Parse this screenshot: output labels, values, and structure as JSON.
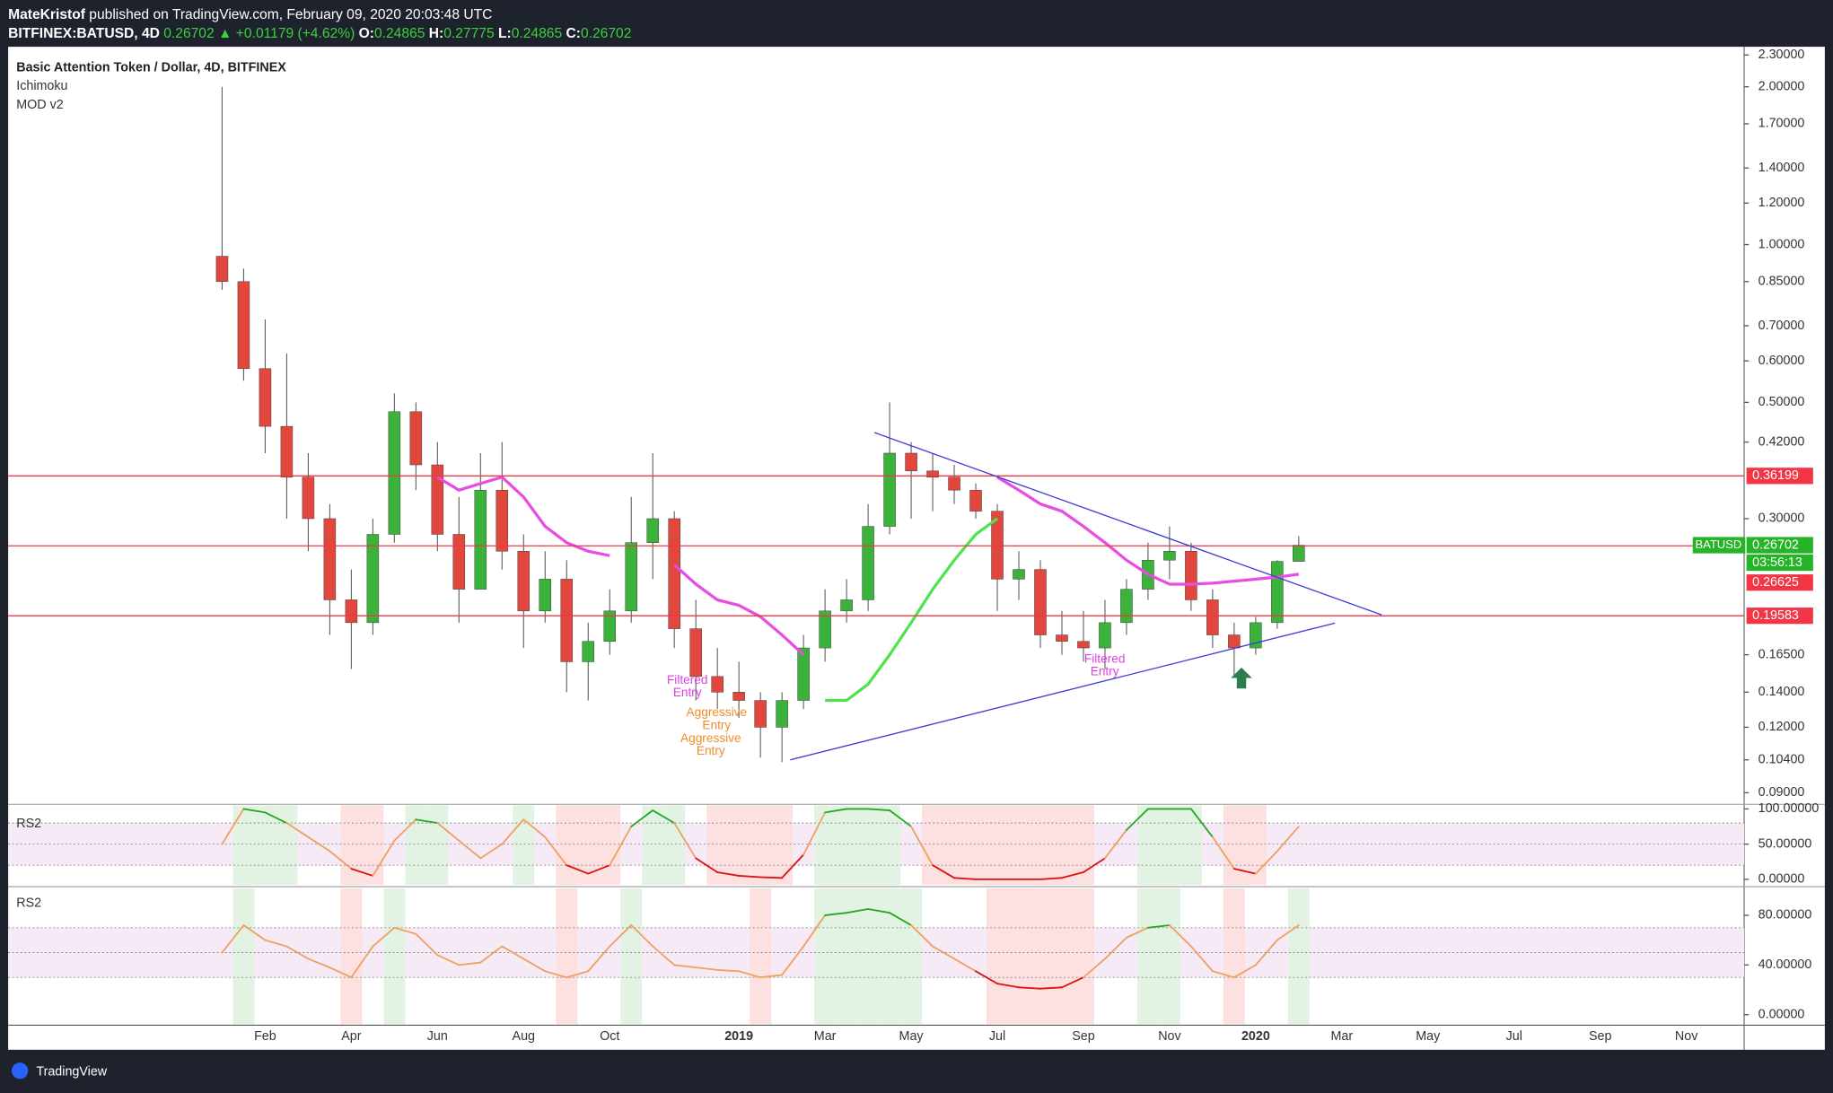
{
  "header": {
    "author": "MateKristof",
    "published": "published on TradingView.com, February 09, 2020 20:03:48 UTC",
    "symbol": "BITFINEX:BATUSD, 4D",
    "last": "0.26702",
    "change": "▲ +0.01179 (+4.62%)",
    "ohlc": [
      {
        "label": "O:",
        "value": "0.24865"
      },
      {
        "label": "H:",
        "value": "0.27775"
      },
      {
        "label": "L:",
        "value": "0.24865"
      },
      {
        "label": "C:",
        "value": "0.26702"
      }
    ]
  },
  "footer": {
    "brand": "TradingView"
  },
  "chart_data": [
    {
      "type": "candlestick",
      "title": "Basic Attention Token / Dollar, 4D, BITFINEX",
      "indicators": [
        "Ichimoku",
        "MOD v2"
      ],
      "categories": [
        null,
        null,
        "Feb",
        null,
        null,
        null,
        "Apr",
        null,
        null,
        null,
        "Jun",
        null,
        null,
        null,
        "Aug",
        null,
        null,
        null,
        "Oct",
        null,
        null,
        null,
        null,
        null,
        "2019",
        null,
        null,
        null,
        "Mar",
        null,
        null,
        null,
        "May",
        null,
        null,
        null,
        "Jul",
        null,
        null,
        null,
        "Sep",
        null,
        null,
        null,
        "Nov",
        null,
        null,
        null,
        "2020",
        null,
        null,
        null,
        "Mar",
        null,
        null,
        null,
        "May",
        null,
        null,
        null,
        "Jul",
        null,
        null,
        null,
        "Sep",
        null,
        null,
        null,
        "Nov",
        null,
        null
      ],
      "open": [
        0.95,
        0.85,
        0.58,
        0.45,
        0.36,
        0.3,
        0.21,
        0.19,
        0.28,
        0.48,
        0.38,
        0.28,
        0.22,
        0.34,
        0.26,
        0.2,
        0.23,
        0.16,
        0.175,
        0.2,
        0.27,
        0.3,
        0.185,
        0.15,
        0.14,
        0.135,
        0.12,
        0.135,
        0.17,
        0.2,
        0.21,
        0.29,
        0.4,
        0.37,
        0.36,
        0.34,
        0.31,
        0.23,
        0.24,
        0.18,
        0.175,
        0.17,
        0.19,
        0.22,
        0.25,
        0.26,
        0.21,
        0.18,
        0.17,
        0.19,
        0.24865,
        null,
        null,
        null,
        null,
        null,
        null,
        null,
        null,
        null,
        null,
        null,
        null,
        null,
        null,
        null,
        null,
        null,
        null,
        null,
        null
      ],
      "high": [
        2.0,
        0.9,
        0.72,
        0.62,
        0.4,
        0.32,
        0.24,
        0.3,
        0.52,
        0.5,
        0.42,
        0.33,
        0.4,
        0.42,
        0.28,
        0.26,
        0.25,
        0.19,
        0.22,
        0.33,
        0.4,
        0.31,
        0.21,
        0.17,
        0.16,
        0.14,
        0.14,
        0.18,
        0.22,
        0.23,
        0.32,
        0.5,
        0.42,
        0.4,
        0.38,
        0.35,
        0.32,
        0.26,
        0.25,
        0.2,
        0.2,
        0.21,
        0.23,
        0.27,
        0.29,
        0.27,
        0.22,
        0.19,
        0.195,
        0.25,
        0.27775,
        null,
        null,
        null,
        null,
        null,
        null,
        null,
        null,
        null,
        null,
        null,
        null,
        null,
        null,
        null,
        null,
        null,
        null,
        null,
        null
      ],
      "low": [
        0.82,
        0.55,
        0.4,
        0.3,
        0.26,
        0.18,
        0.155,
        0.18,
        0.27,
        0.34,
        0.26,
        0.19,
        0.22,
        0.24,
        0.17,
        0.19,
        0.14,
        0.135,
        0.165,
        0.19,
        0.23,
        0.17,
        0.135,
        0.13,
        0.125,
        0.105,
        0.103,
        0.13,
        0.16,
        0.19,
        0.2,
        0.28,
        0.3,
        0.31,
        0.32,
        0.3,
        0.2,
        0.21,
        0.17,
        0.165,
        0.16,
        0.155,
        0.18,
        0.21,
        0.23,
        0.2,
        0.17,
        0.15,
        0.165,
        0.185,
        0.24865,
        null,
        null,
        null,
        null,
        null,
        null,
        null,
        null,
        null,
        null,
        null,
        null,
        null,
        null,
        null,
        null,
        null,
        null,
        null,
        null
      ],
      "close": [
        0.85,
        0.58,
        0.45,
        0.36,
        0.3,
        0.21,
        0.19,
        0.28,
        0.48,
        0.38,
        0.28,
        0.22,
        0.34,
        0.26,
        0.2,
        0.23,
        0.16,
        0.175,
        0.2,
        0.27,
        0.3,
        0.185,
        0.15,
        0.14,
        0.135,
        0.12,
        0.135,
        0.17,
        0.2,
        0.21,
        0.29,
        0.4,
        0.37,
        0.36,
        0.34,
        0.31,
        0.23,
        0.24,
        0.18,
        0.175,
        0.17,
        0.19,
        0.22,
        0.25,
        0.26,
        0.21,
        0.18,
        0.17,
        0.19,
        0.24865,
        0.26702,
        null,
        null,
        null,
        null,
        null,
        null,
        null,
        null,
        null,
        null,
        null,
        null,
        null,
        null,
        null,
        null,
        null,
        null,
        null,
        null
      ],
      "up_color": "#3bb33b",
      "down_color": "#e2473e",
      "overlays": [
        {
          "color": "#e94ce0",
          "values": [
            null,
            null,
            null,
            null,
            null,
            null,
            null,
            null,
            null,
            null,
            0.36,
            0.34,
            0.35,
            0.36,
            0.33,
            0.29,
            0.27,
            0.26,
            0.255,
            null,
            null,
            0.245,
            0.225,
            0.21,
            0.205,
            0.195,
            0.18,
            0.165,
            null,
            null,
            null,
            null,
            null,
            null,
            null,
            null,
            0.36,
            0.34,
            0.32,
            0.31,
            0.29,
            0.27,
            0.25,
            0.235,
            0.225,
            0.225,
            0.226,
            0.228,
            0.23,
            0.232,
            0.235,
            null,
            null,
            null,
            null,
            null,
            null,
            null,
            null,
            null,
            null,
            null,
            null,
            null,
            null,
            null,
            null,
            null,
            null,
            null,
            null
          ]
        },
        {
          "color": "#4ee44e",
          "values": [
            null,
            null,
            null,
            null,
            null,
            null,
            null,
            null,
            null,
            null,
            null,
            null,
            null,
            null,
            null,
            null,
            null,
            null,
            null,
            null,
            null,
            null,
            null,
            null,
            null,
            null,
            null,
            null,
            0.135,
            0.135,
            0.145,
            0.165,
            0.19,
            0.22,
            0.25,
            0.28,
            0.3,
            null,
            null,
            null,
            null,
            null,
            null,
            null,
            null,
            null,
            null,
            null,
            null,
            null,
            null,
            null,
            null,
            null,
            null,
            null,
            null,
            null,
            null,
            null,
            null,
            null,
            null,
            null,
            null,
            null,
            null,
            null,
            null,
            null,
            null
          ]
        }
      ],
      "log_scale": true,
      "ylim": [
        0.086,
        2.36
      ],
      "yticks": [
        {
          "value": 2.3,
          "label": "2.30000"
        },
        {
          "value": 2.0,
          "label": "2.00000"
        },
        {
          "value": 1.7,
          "label": "1.70000"
        },
        {
          "value": 1.4,
          "label": "1.40000"
        },
        {
          "value": 1.2,
          "label": "1.20000"
        },
        {
          "value": 1.0,
          "label": "1.00000"
        },
        {
          "value": 0.85,
          "label": "0.85000"
        },
        {
          "value": 0.7,
          "label": "0.70000"
        },
        {
          "value": 0.6,
          "label": "0.60000"
        },
        {
          "value": 0.5,
          "label": "0.50000"
        },
        {
          "value": 0.42,
          "label": "0.42000"
        },
        {
          "value": 0.3,
          "label": "0.30000"
        },
        {
          "value": 0.165,
          "label": "0.16500"
        },
        {
          "value": 0.14,
          "label": "0.14000"
        },
        {
          "value": 0.12,
          "label": "0.12000"
        },
        {
          "value": 0.104,
          "label": "0.10400"
        },
        {
          "value": 0.09,
          "label": "0.09000"
        }
      ],
      "levels": [
        0.36199,
        0.26625,
        0.19583
      ],
      "level_color": "#f23645",
      "last_price": {
        "symbol": "BATUSD",
        "value": 0.26702,
        "countdown": "03:56:13",
        "color": "#27b327"
      },
      "annotations": [
        {
          "lines": [
            "Filtered",
            "Entry"
          ],
          "color": "#e040e0"
        },
        {
          "lines": [
            "Aggressive",
            "Entry"
          ],
          "color": "#f08c28"
        },
        {
          "lines": [
            "Aggressive",
            "Entry"
          ],
          "color": "#f08c28"
        },
        {
          "lines": [
            "Filtered",
            "Entry"
          ],
          "color": "#e040e0"
        }
      ]
    },
    {
      "type": "line",
      "title": "RS2",
      "values": [
        50,
        100,
        95,
        80,
        60,
        40,
        15,
        5,
        55,
        85,
        80,
        55,
        30,
        50,
        85,
        60,
        20,
        8,
        20,
        75,
        98,
        80,
        30,
        10,
        5,
        3,
        2,
        35,
        95,
        100,
        100,
        98,
        75,
        20,
        2,
        0,
        0,
        0,
        0,
        2,
        10,
        30,
        70,
        100,
        100,
        100,
        60,
        15,
        8,
        40,
        75,
        null,
        null,
        null,
        null,
        null,
        null,
        null,
        null,
        null,
        null,
        null,
        null,
        null,
        null,
        null,
        null,
        null,
        null,
        null,
        null
      ],
      "ylim": [
        -8,
        105
      ],
      "yticks": [
        {
          "value": 100,
          "label": "100.00000"
        },
        {
          "value": 50,
          "label": "50.00000"
        },
        {
          "value": 0,
          "label": "0.00000"
        }
      ],
      "levels": [
        80,
        50,
        20
      ],
      "color": "#f0a060",
      "high_color": "#22aa22",
      "low_color": "#dd1111"
    },
    {
      "type": "line",
      "title": "RS2",
      "values": [
        50,
        72,
        60,
        55,
        45,
        38,
        30,
        55,
        70,
        65,
        48,
        40,
        42,
        55,
        45,
        35,
        30,
        35,
        55,
        72,
        55,
        40,
        38,
        36,
        35,
        30,
        32,
        55,
        80,
        82,
        85,
        82,
        72,
        55,
        45,
        35,
        25,
        22,
        21,
        22,
        30,
        45,
        62,
        70,
        72,
        55,
        35,
        30,
        40,
        60,
        72,
        null,
        null,
        null,
        null,
        null,
        null,
        null,
        null,
        null,
        null,
        null,
        null,
        null,
        null,
        null,
        null,
        null,
        null,
        null,
        null
      ],
      "ylim": [
        -7.5,
        101.6
      ],
      "yticks": [
        {
          "value": 80,
          "label": "80.00000"
        },
        {
          "value": 40,
          "label": "40.00000"
        },
        {
          "value": 0,
          "label": "0.00000"
        }
      ],
      "levels": [
        70,
        50,
        30
      ],
      "color": "#f0a060",
      "high_color": "#22aa22",
      "low_color": "#dd1111"
    }
  ]
}
